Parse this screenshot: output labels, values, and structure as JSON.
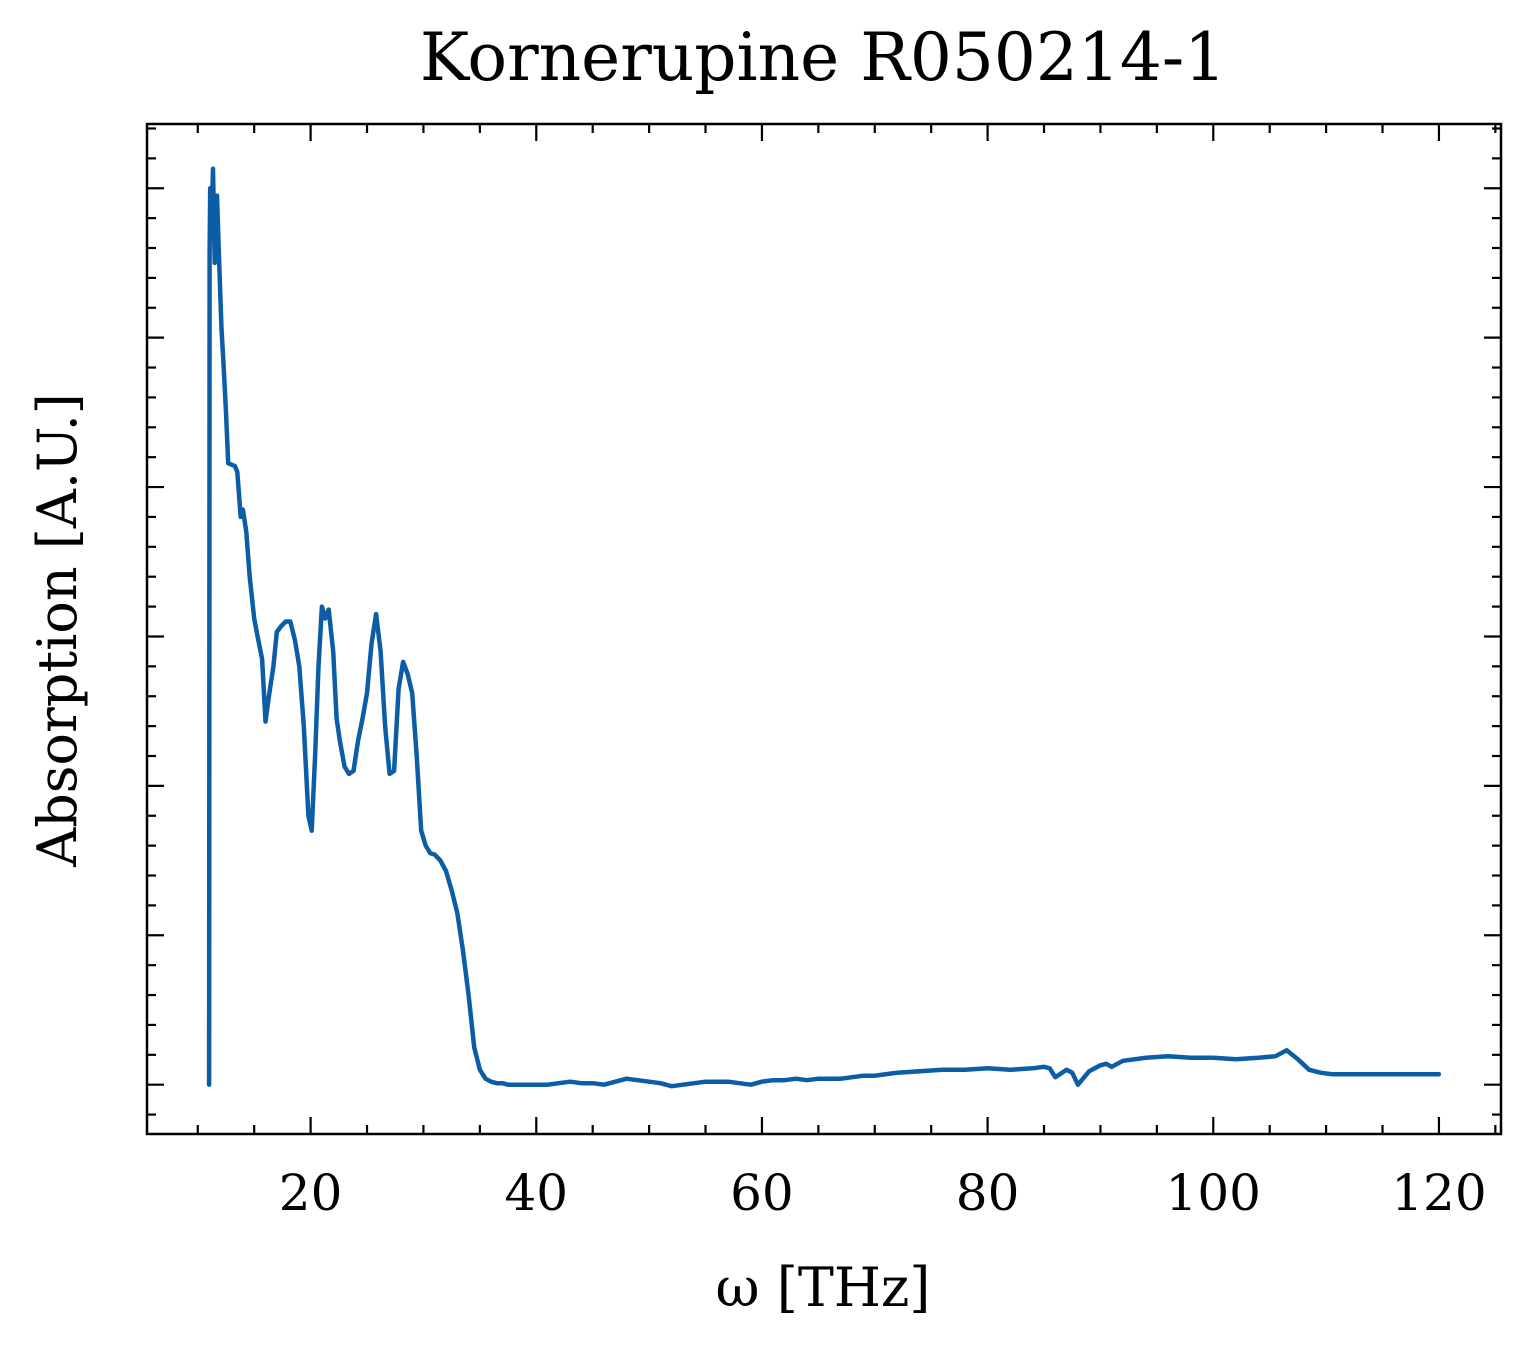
{
  "chart_data": {
    "type": "line",
    "title": "Kornerupine R050214-1",
    "xlabel": "ω [THz]",
    "ylabel": "Absorption [A.U.]",
    "xlim": [
      5.5,
      125.5
    ],
    "ylim": [
      -0.033,
      0.643
    ],
    "grid": false,
    "legend": "none",
    "x_major_ticks": [
      20,
      40,
      60,
      80,
      100,
      120
    ],
    "x_major_tick_labels": [
      "20",
      "40",
      "60",
      "80",
      "100",
      "120"
    ],
    "x_minor_step": 5,
    "y_major_ticks": [
      0.0,
      0.1,
      0.2,
      0.3,
      0.4,
      0.5,
      0.6
    ],
    "y_minor_step": 0.02,
    "y_tick_labels_shown": false,
    "color": "#0c5da5",
    "series": [
      {
        "color": "#0c5da5",
        "x": [
          11.0,
          11.05,
          11.1,
          11.2,
          11.35,
          11.5,
          11.7,
          11.9,
          12.1,
          12.3,
          12.5,
          12.7,
          13.0,
          13.3,
          13.5,
          13.8,
          14.0,
          14.3,
          14.6,
          15.0,
          15.3,
          15.7,
          16.0,
          16.3,
          16.7,
          17.0,
          17.4,
          17.8,
          18.2,
          18.6,
          19.0,
          19.4,
          19.8,
          20.1,
          20.4,
          20.7,
          21.0,
          21.3,
          21.6,
          22.0,
          22.3,
          22.6,
          23.0,
          23.4,
          23.8,
          24.2,
          24.6,
          25.0,
          25.4,
          25.8,
          26.2,
          26.6,
          27.0,
          27.4,
          27.8,
          28.2,
          28.6,
          29.0,
          29.4,
          29.8,
          30.2,
          30.6,
          31.0,
          31.5,
          32.0,
          32.5,
          33.0,
          33.5,
          34.0,
          34.5,
          35.0,
          35.5,
          36.0,
          36.5,
          37.0,
          37.5,
          38.0,
          39.0,
          40.0,
          41.0,
          42.0,
          43.0,
          44.0,
          45.0,
          46.0,
          47.0,
          48.0,
          49.0,
          50.0,
          51.0,
          52.0,
          53.0,
          54.0,
          55.0,
          56.0,
          57.0,
          58.0,
          59.0,
          60.0,
          61.0,
          62.0,
          63.0,
          64.0,
          65.0,
          66.0,
          67.0,
          68.0,
          69.0,
          70.0,
          72.0,
          74.0,
          76.0,
          78.0,
          80.0,
          82.0,
          84.0,
          85.0,
          85.5,
          86.0,
          87.0,
          87.5,
          88.0,
          89.0,
          90.0,
          90.5,
          91.0,
          92.0,
          94.0,
          96.0,
          98.0,
          100.0,
          102.0,
          104.0,
          105.5,
          106.5,
          107.5,
          108.5,
          109.5,
          110.5,
          112.0,
          114.0,
          116.0,
          118.0,
          120.0
        ],
        "y": [
          0.0,
          0.555,
          0.6,
          0.57,
          0.613,
          0.55,
          0.595,
          0.55,
          0.506,
          0.48,
          0.45,
          0.416,
          0.415,
          0.414,
          0.41,
          0.38,
          0.385,
          0.37,
          0.34,
          0.312,
          0.3,
          0.285,
          0.243,
          0.26,
          0.28,
          0.303,
          0.307,
          0.31,
          0.31,
          0.298,
          0.28,
          0.24,
          0.18,
          0.17,
          0.22,
          0.28,
          0.32,
          0.312,
          0.318,
          0.29,
          0.245,
          0.23,
          0.213,
          0.208,
          0.21,
          0.23,
          0.245,
          0.262,
          0.295,
          0.315,
          0.29,
          0.24,
          0.208,
          0.21,
          0.265,
          0.283,
          0.275,
          0.262,
          0.22,
          0.17,
          0.16,
          0.155,
          0.154,
          0.15,
          0.143,
          0.13,
          0.115,
          0.09,
          0.06,
          0.025,
          0.01,
          0.004,
          0.002,
          0.001,
          0.001,
          0.0,
          0.0,
          0.0,
          0.0,
          0.0,
          0.001,
          0.002,
          0.001,
          0.001,
          0.0,
          0.002,
          0.004,
          0.003,
          0.002,
          0.001,
          -0.001,
          0.0,
          0.001,
          0.002,
          0.002,
          0.002,
          0.001,
          0.0,
          0.002,
          0.003,
          0.003,
          0.004,
          0.003,
          0.004,
          0.004,
          0.004,
          0.005,
          0.006,
          0.006,
          0.008,
          0.009,
          0.01,
          0.01,
          0.011,
          0.01,
          0.011,
          0.012,
          0.011,
          0.005,
          0.01,
          0.008,
          0.0,
          0.009,
          0.013,
          0.014,
          0.012,
          0.016,
          0.018,
          0.019,
          0.018,
          0.018,
          0.017,
          0.018,
          0.019,
          0.023,
          0.017,
          0.01,
          0.008,
          0.007,
          0.007,
          0.007,
          0.007,
          0.007,
          0.007
        ]
      }
    ]
  }
}
